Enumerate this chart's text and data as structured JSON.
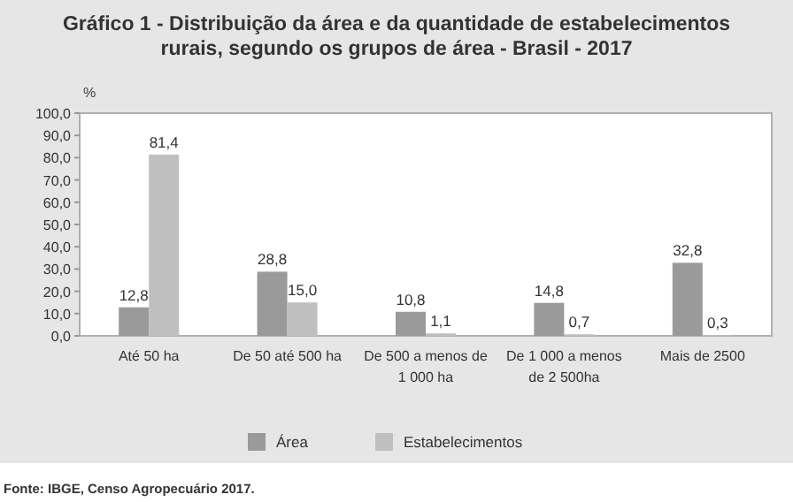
{
  "chart_data": {
    "type": "bar",
    "title": "Gráfico 1 - Distribuição da área e da quantidade de estabelecimentos rurais, segundo os grupos de área - Brasil - 2017",
    "ylabel": "%",
    "categories": [
      "Até 50 ha",
      "De 50 até 500 ha",
      "De 500 a menos de 1 000 ha",
      "De 1 000 a menos de 2 500ha",
      "Mais de 2500"
    ],
    "series": [
      {
        "name": "Área",
        "color": "#9a9a9a",
        "values": [
          12.8,
          28.8,
          10.8,
          14.8,
          32.8
        ],
        "value_labels": [
          "12,8",
          "28,8",
          "10,8",
          "14,8",
          "32,8"
        ]
      },
      {
        "name": "Estabelecimentos",
        "color": "#bfbfbf",
        "values": [
          81.4,
          15.0,
          1.1,
          0.7,
          0.3
        ],
        "value_labels": [
          "81,4",
          "15,0",
          "1,1",
          "0,7",
          "0,3"
        ]
      }
    ],
    "ylim": [
      0,
      100
    ],
    "yticks": [
      {
        "value": 0,
        "label": "0,0"
      },
      {
        "value": 10,
        "label": "10,0"
      },
      {
        "value": 20,
        "label": "20,0"
      },
      {
        "value": 30,
        "label": "30,0"
      },
      {
        "value": 40,
        "label": "40,0"
      },
      {
        "value": 50,
        "label": "50,0"
      },
      {
        "value": 60,
        "label": "60,0"
      },
      {
        "value": 70,
        "label": "70,0"
      },
      {
        "value": 80,
        "label": "80,0"
      },
      {
        "value": 90,
        "label": "90,0"
      },
      {
        "value": 100,
        "label": "100,0"
      }
    ],
    "legend": "bottom",
    "grid": false,
    "annotations": [
      "Fonte: IBGE, Censo Agropecuário 2017."
    ]
  }
}
